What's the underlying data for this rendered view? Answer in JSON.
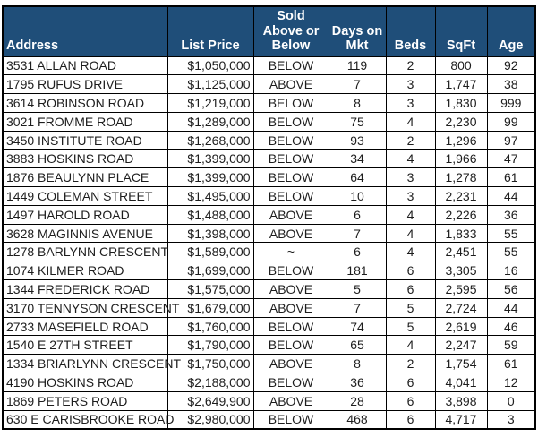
{
  "colors": {
    "header_bg": "#1F4E79",
    "header_text": "#FFFFFF",
    "border": "#000000",
    "body_text": "#1D1D1D",
    "row_bg": "#FFFFFF"
  },
  "table": {
    "columns": [
      {
        "key": "address",
        "label": "Address"
      },
      {
        "key": "list-price",
        "label": "List Price"
      },
      {
        "key": "sold-above-or-below",
        "label": "Sold\nAbove or\nBelow"
      },
      {
        "key": "days-on-mkt",
        "label": "Days on\nMkt"
      },
      {
        "key": "beds",
        "label": "Beds"
      },
      {
        "key": "sqft",
        "label": "SqFt"
      },
      {
        "key": "age",
        "label": "Age"
      }
    ],
    "rows": [
      [
        "3531 ALLAN ROAD",
        "$1,050,000",
        "BELOW",
        "119",
        "2",
        "800",
        "92"
      ],
      [
        "1795 RUFUS DRIVE",
        "$1,125,000",
        "ABOVE",
        "7",
        "3",
        "1,747",
        "38"
      ],
      [
        "3614 ROBINSON ROAD",
        "$1,219,000",
        "BELOW",
        "8",
        "3",
        "1,830",
        "999"
      ],
      [
        "3021 FROMME ROAD",
        "$1,289,000",
        "BELOW",
        "75",
        "4",
        "2,230",
        "99"
      ],
      [
        "3450 INSTITUTE ROAD",
        "$1,268,000",
        "BELOW",
        "93",
        "2",
        "1,296",
        "97"
      ],
      [
        "3883 HOSKINS ROAD",
        "$1,399,000",
        "BELOW",
        "34",
        "4",
        "1,966",
        "47"
      ],
      [
        "1876 BEAULYNN PLACE",
        "$1,399,000",
        "BELOW",
        "64",
        "3",
        "1,278",
        "61"
      ],
      [
        "1449 COLEMAN STREET",
        "$1,495,000",
        "BELOW",
        "10",
        "3",
        "2,231",
        "44"
      ],
      [
        "1497 HAROLD ROAD",
        "$1,488,000",
        "ABOVE",
        "6",
        "4",
        "2,226",
        "36"
      ],
      [
        "3628 MAGINNIS AVENUE",
        "$1,398,000",
        "ABOVE",
        "7",
        "4",
        "1,833",
        "55"
      ],
      [
        "1278 BARLYNN CRESCENT",
        "$1,589,000",
        "~",
        "6",
        "4",
        "2,451",
        "55"
      ],
      [
        "1074 KILMER ROAD",
        "$1,699,000",
        "BELOW",
        "181",
        "6",
        "3,305",
        "16"
      ],
      [
        "1344 FREDERICK ROAD",
        "$1,575,000",
        "ABOVE",
        "5",
        "6",
        "2,595",
        "56"
      ],
      [
        "3170 TENNYSON CRESCENT",
        "$1,679,000",
        "ABOVE",
        "7",
        "5",
        "2,724",
        "44"
      ],
      [
        "2733 MASEFIELD ROAD",
        "$1,760,000",
        "BELOW",
        "74",
        "5",
        "2,619",
        "46"
      ],
      [
        "1540 E 27TH STREET",
        "$1,790,000",
        "BELOW",
        "65",
        "4",
        "2,247",
        "59"
      ],
      [
        "1334 BRIARLYNN CRESCENT",
        "$1,750,000",
        "ABOVE",
        "8",
        "2",
        "1,754",
        "61"
      ],
      [
        "4190 HOSKINS ROAD",
        "$2,188,000",
        "BELOW",
        "36",
        "6",
        "4,041",
        "12"
      ],
      [
        "1869 PETERS ROAD",
        "$2,649,900",
        "ABOVE",
        "28",
        "6",
        "3,898",
        "0"
      ],
      [
        "630 E CARISBROOKE ROAD",
        "$2,980,000",
        "BELOW",
        "468",
        "6",
        "4,717",
        "3"
      ]
    ]
  }
}
